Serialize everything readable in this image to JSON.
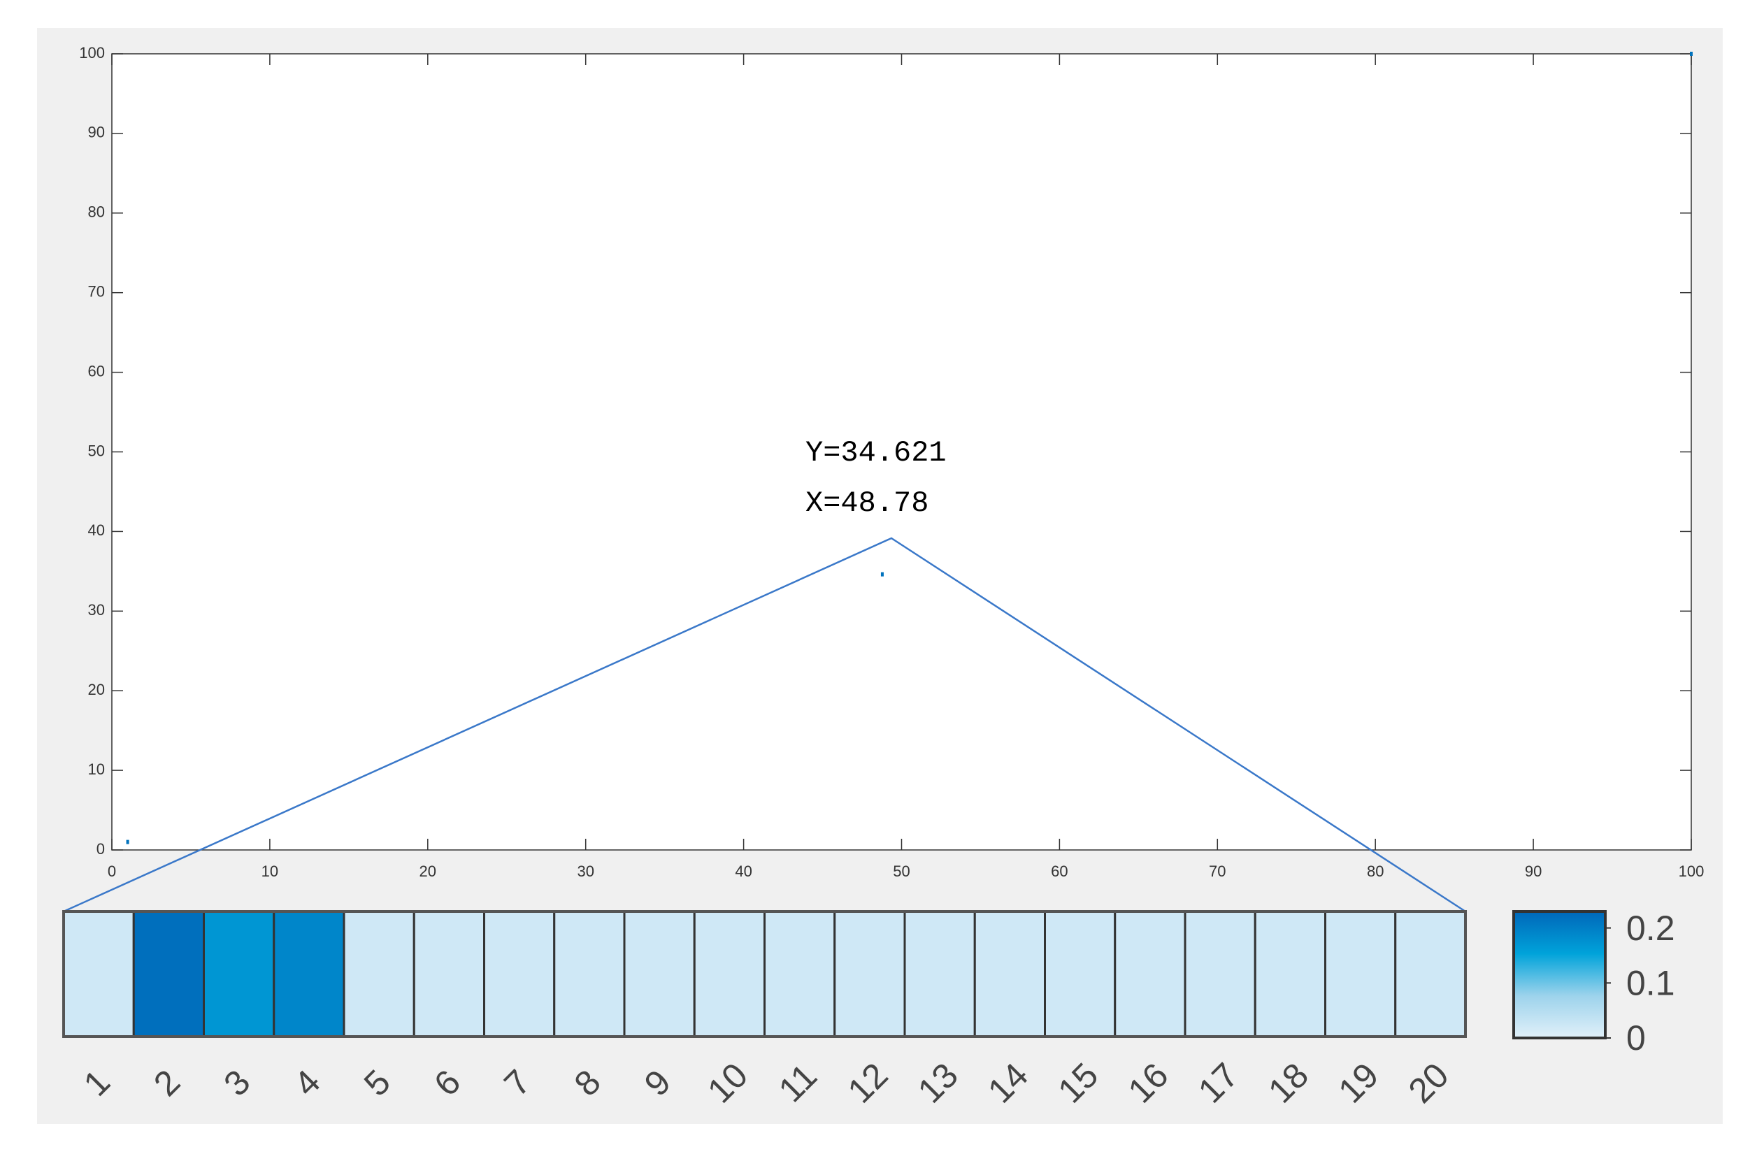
{
  "chart_data": {
    "type": "scatter",
    "x": [
      1,
      48.78,
      100
    ],
    "y": [
      1,
      34.621,
      100
    ],
    "color": "#0072bd",
    "xlim": [
      0,
      100
    ],
    "ylim": [
      0,
      100
    ],
    "xticks": [
      0,
      10,
      20,
      30,
      40,
      50,
      60,
      70,
      80,
      90,
      100
    ],
    "yticks": [
      0,
      10,
      20,
      30,
      40,
      50,
      60,
      70,
      80,
      90,
      100
    ],
    "annotation": [
      "Y=34.621",
      "X=48.78"
    ]
  },
  "heatmap": {
    "categories": [
      "1",
      "2",
      "3",
      "4",
      "5",
      "6",
      "7",
      "8",
      "9",
      "10",
      "11",
      "12",
      "13",
      "14",
      "15",
      "16",
      "17",
      "18",
      "19",
      "20"
    ],
    "values": [
      0.02,
      0.22,
      0.17,
      0.19,
      0.02,
      0.02,
      0.02,
      0.02,
      0.02,
      0.02,
      0.02,
      0.02,
      0.02,
      0.02,
      0.02,
      0.02,
      0.02,
      0.02,
      0.02,
      0.02
    ],
    "clim": [
      0,
      0.23
    ],
    "cticks": [
      0,
      0.1,
      0.2
    ],
    "colors": [
      "#e1f0f9",
      "#9dd3ec",
      "#00a3da",
      "#0067b9"
    ]
  }
}
